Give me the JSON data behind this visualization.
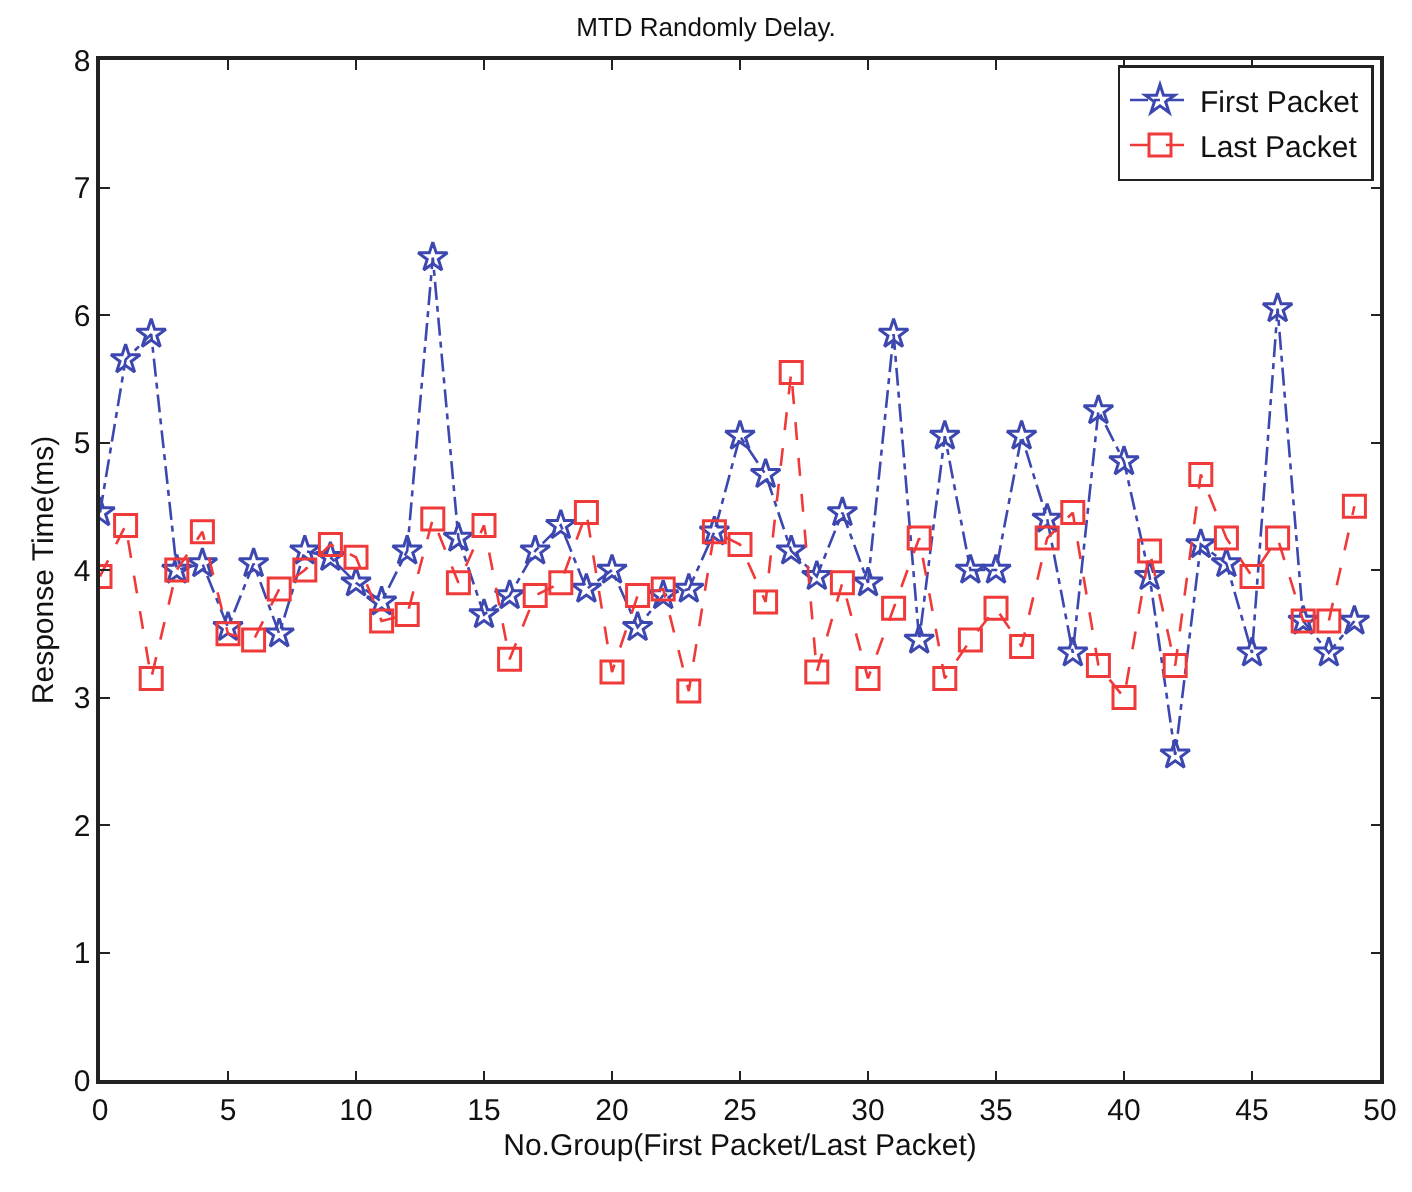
{
  "chart_data": {
    "type": "line",
    "title": "MTD Randomly Delay.",
    "xlabel": "No.Group(First Packet/Last Packet)",
    "ylabel": "Response Time(ms)",
    "x": [
      0,
      1,
      2,
      3,
      4,
      5,
      6,
      7,
      8,
      9,
      10,
      11,
      12,
      13,
      14,
      15,
      16,
      17,
      18,
      19,
      20,
      21,
      22,
      23,
      24,
      25,
      26,
      27,
      28,
      29,
      30,
      31,
      32,
      33,
      34,
      35,
      36,
      37,
      38,
      39,
      40,
      41,
      42,
      43,
      44,
      45,
      46,
      47,
      48,
      49
    ],
    "series": [
      {
        "name": "First Packet",
        "color": "#3d47b0",
        "marker": "star",
        "line_style": "dashdot",
        "values": [
          4.45,
          5.65,
          5.85,
          4.0,
          4.05,
          3.55,
          4.05,
          3.5,
          4.15,
          4.1,
          3.9,
          3.75,
          4.15,
          6.45,
          4.25,
          3.65,
          3.8,
          4.15,
          4.35,
          3.85,
          4.0,
          3.55,
          3.8,
          3.85,
          4.3,
          5.05,
          4.75,
          4.15,
          3.95,
          4.45,
          3.9,
          5.85,
          3.45,
          5.05,
          4.0,
          4.0,
          5.05,
          4.4,
          3.35,
          5.25,
          4.85,
          3.95,
          2.55,
          4.2,
          4.05,
          3.35,
          6.05,
          3.6,
          3.35,
          3.6
        ]
      },
      {
        "name": "Last Packet",
        "color": "#f03a3a",
        "marker": "square",
        "line_style": "dashed",
        "values": [
          3.95,
          4.35,
          3.15,
          4.0,
          4.3,
          3.5,
          3.45,
          3.85,
          4.0,
          4.2,
          4.1,
          3.6,
          3.65,
          4.4,
          3.9,
          4.35,
          3.3,
          3.8,
          3.9,
          4.45,
          3.2,
          3.8,
          3.85,
          3.05,
          4.3,
          4.2,
          3.75,
          5.55,
          3.2,
          3.9,
          3.15,
          3.7,
          4.25,
          3.15,
          3.45,
          3.7,
          3.4,
          4.25,
          4.45,
          3.25,
          3.0,
          4.15,
          3.25,
          4.75,
          4.25,
          3.95,
          4.25,
          3.6,
          3.6,
          4.5
        ]
      }
    ],
    "xlim": [
      0,
      50
    ],
    "xticks": [
      0,
      5,
      10,
      15,
      20,
      25,
      30,
      35,
      40,
      45,
      50
    ],
    "ylim": [
      0,
      8
    ],
    "yticks": [
      0,
      1,
      2,
      3,
      4,
      5,
      6,
      7,
      8
    ],
    "grid": false,
    "legend": "top right"
  }
}
